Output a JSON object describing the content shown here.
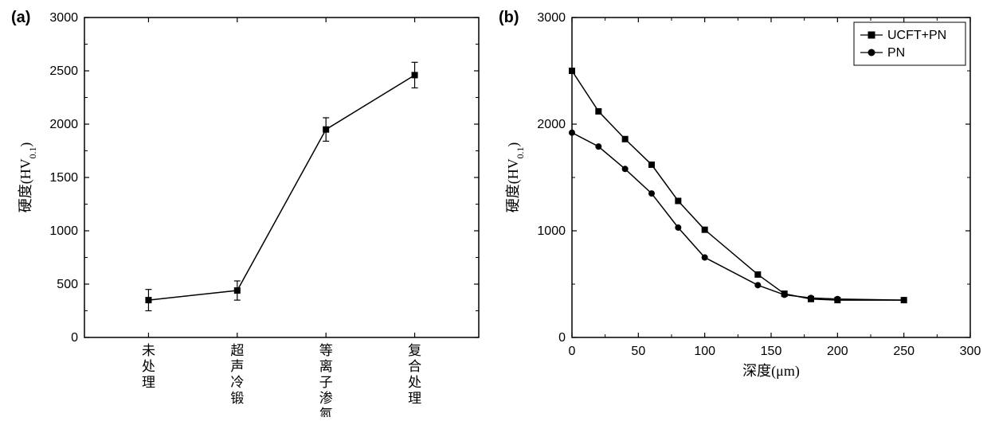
{
  "panel_a": {
    "label": "(a)",
    "label_fontsize": 20,
    "label_bold": true,
    "type": "line-errorbar",
    "ylabel": "硬度(HV",
    "ylabel_sub": "0.1",
    "ylabel_close": ")",
    "axis_fontsize": 18,
    "tick_fontsize": 16,
    "ylim": [
      0,
      3000
    ],
    "ytick_step": 500,
    "yticks": [
      0,
      500,
      1000,
      1500,
      2000,
      2500,
      3000
    ],
    "x_categories_vertical": [
      "未处理",
      "超声冷锻",
      "等离子渗氮",
      "复合处理"
    ],
    "series": {
      "marker": "square",
      "marker_size": 7,
      "marker_fill": "#000000",
      "line_color": "#000000",
      "line_width": 1.5,
      "error_color": "#000000",
      "error_cap": 8,
      "values": [
        350,
        440,
        1950,
        2460
      ],
      "err_low": [
        100,
        90,
        110,
        120
      ],
      "err_high": [
        100,
        90,
        110,
        120
      ]
    },
    "background_color": "#ffffff",
    "frame_color": "#000000",
    "tick_len_major": 6,
    "tick_len_minor": 4
  },
  "panel_b": {
    "label": "(b)",
    "label_fontsize": 20,
    "label_bold": true,
    "type": "line",
    "ylabel": "硬度(HV",
    "ylabel_sub": "0.1",
    "ylabel_close": ")",
    "xlabel": "深度(μm)",
    "axis_fontsize": 18,
    "tick_fontsize": 16,
    "ylim": [
      0,
      3000
    ],
    "ytick_step": 1000,
    "yticks": [
      0,
      1000,
      2000,
      3000
    ],
    "xlim": [
      0,
      300
    ],
    "xtick_step": 50,
    "xticks": [
      0,
      50,
      100,
      150,
      200,
      250,
      300
    ],
    "legend": {
      "position": "top-right",
      "fontsize": 16,
      "frame_color": "#000000",
      "items": [
        {
          "label": "UCFT+PN",
          "marker": "square"
        },
        {
          "label": "PN",
          "marker": "circle"
        }
      ]
    },
    "series": [
      {
        "name": "UCFT+PN",
        "marker": "square",
        "marker_size": 7,
        "marker_fill": "#000000",
        "line_color": "#000000",
        "line_width": 1.5,
        "x": [
          0,
          20,
          40,
          60,
          80,
          100,
          140,
          160,
          180,
          200,
          250
        ],
        "y": [
          2500,
          2120,
          1860,
          1620,
          1280,
          1010,
          590,
          410,
          360,
          350,
          350
        ]
      },
      {
        "name": "PN",
        "marker": "circle",
        "marker_size": 7,
        "marker_fill": "#000000",
        "line_color": "#000000",
        "line_width": 1.5,
        "x": [
          0,
          20,
          40,
          60,
          80,
          100,
          140,
          160,
          180,
          200,
          250
        ],
        "y": [
          1920,
          1790,
          1580,
          1350,
          1030,
          750,
          490,
          400,
          370,
          360,
          350
        ]
      }
    ],
    "background_color": "#ffffff",
    "frame_color": "#000000",
    "tick_len_major": 6,
    "tick_len_minor": 4
  }
}
